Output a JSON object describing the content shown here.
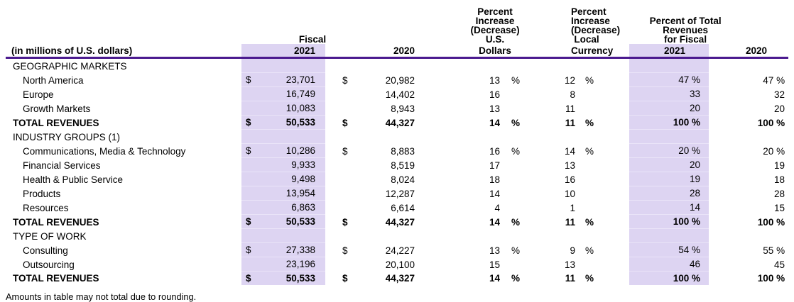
{
  "colors": {
    "highlight": "#ddd4f2",
    "rule": "#4b1a8f"
  },
  "header": {
    "row_label": "(in millions of U.S. dollars)",
    "fiscal_label": "Fiscal",
    "col_2021": "2021",
    "col_2020": "2020",
    "pct_us_lines": [
      "Percent",
      "Increase",
      "(Decrease)",
      "U.S."
    ],
    "pct_us_bottom": "Dollars",
    "pct_local_lines": [
      "Percent",
      "Increase",
      "(Decrease)",
      "Local"
    ],
    "pct_local_bottom": "Currency",
    "pct_total_lines": [
      "Percent of Total",
      "Revenues",
      "for Fiscal"
    ],
    "pct_total_2021": "2021",
    "pct_total_2020": "2020"
  },
  "table": {
    "rows": [
      {
        "type": "section",
        "label": "GEOGRAPHIC MARKETS",
        "d1": "",
        "v1": "",
        "d2": "",
        "v2": "",
        "p1": "",
        "s1": "",
        "p2": "",
        "s2": "",
        "t1": "",
        "t2": ""
      },
      {
        "type": "item",
        "label": "North America",
        "d1": "$",
        "v1": "23,701",
        "d2": "$",
        "v2": "20,982",
        "p1": "13",
        "s1": "%",
        "p2": "12",
        "s2": "%",
        "t1": "47 %",
        "t2": "47 %"
      },
      {
        "type": "item",
        "label": "Europe",
        "d1": "",
        "v1": "16,749",
        "d2": "",
        "v2": "14,402",
        "p1": "16",
        "s1": "",
        "p2": "8",
        "s2": "",
        "t1": "33",
        "t2": "32"
      },
      {
        "type": "item",
        "label": "Growth Markets",
        "d1": "",
        "v1": "10,083",
        "d2": "",
        "v2": "8,943",
        "p1": "13",
        "s1": "",
        "p2": "11",
        "s2": "",
        "t1": "20",
        "t2": "20"
      },
      {
        "type": "total",
        "label": "TOTAL REVENUES",
        "d1": "$",
        "v1": "50,533",
        "d2": "$",
        "v2": "44,327",
        "p1": "14",
        "s1": "%",
        "p2": "11",
        "s2": "%",
        "t1": "100 %",
        "t2": "100 %"
      },
      {
        "type": "section",
        "label": "INDUSTRY GROUPS (1)",
        "d1": "",
        "v1": "",
        "d2": "",
        "v2": "",
        "p1": "",
        "s1": "",
        "p2": "",
        "s2": "",
        "t1": "",
        "t2": ""
      },
      {
        "type": "item",
        "label": "Communications, Media & Technology",
        "d1": "$",
        "v1": "10,286",
        "d2": "$",
        "v2": "8,883",
        "p1": "16",
        "s1": "%",
        "p2": "14",
        "s2": "%",
        "t1": "20 %",
        "t2": "20 %"
      },
      {
        "type": "item",
        "label": "Financial Services",
        "d1": "",
        "v1": "9,933",
        "d2": "",
        "v2": "8,519",
        "p1": "17",
        "s1": "",
        "p2": "13",
        "s2": "",
        "t1": "20",
        "t2": "19"
      },
      {
        "type": "item",
        "label": "Health & Public Service",
        "d1": "",
        "v1": "9,498",
        "d2": "",
        "v2": "8,024",
        "p1": "18",
        "s1": "",
        "p2": "16",
        "s2": "",
        "t1": "19",
        "t2": "18"
      },
      {
        "type": "item",
        "label": "Products",
        "d1": "",
        "v1": "13,954",
        "d2": "",
        "v2": "12,287",
        "p1": "14",
        "s1": "",
        "p2": "10",
        "s2": "",
        "t1": "28",
        "t2": "28"
      },
      {
        "type": "item",
        "label": "Resources",
        "d1": "",
        "v1": "6,863",
        "d2": "",
        "v2": "6,614",
        "p1": "4",
        "s1": "",
        "p2": "1",
        "s2": "",
        "t1": "14",
        "t2": "15"
      },
      {
        "type": "total",
        "label": "TOTAL REVENUES",
        "d1": "$",
        "v1": "50,533",
        "d2": "$",
        "v2": "44,327",
        "p1": "14",
        "s1": "%",
        "p2": "11",
        "s2": "%",
        "t1": "100 %",
        "t2": "100 %"
      },
      {
        "type": "section",
        "label": "TYPE OF WORK",
        "d1": "",
        "v1": "",
        "d2": "",
        "v2": "",
        "p1": "",
        "s1": "",
        "p2": "",
        "s2": "",
        "t1": "",
        "t2": ""
      },
      {
        "type": "item",
        "label": "Consulting",
        "d1": "$",
        "v1": "27,338",
        "d2": "$",
        "v2": "24,227",
        "p1": "13",
        "s1": "%",
        "p2": "9",
        "s2": "%",
        "t1": "54 %",
        "t2": "55 %"
      },
      {
        "type": "item",
        "label": "Outsourcing",
        "d1": "",
        "v1": "23,196",
        "d2": "",
        "v2": "20,100",
        "p1": "15",
        "s1": "",
        "p2": "13",
        "s2": "",
        "t1": "46",
        "t2": "45"
      },
      {
        "type": "total",
        "label": "TOTAL REVENUES",
        "d1": "$",
        "v1": "50,533",
        "d2": "$",
        "v2": "44,327",
        "p1": "14",
        "s1": "%",
        "p2": "11",
        "s2": "%",
        "t1": "100 %",
        "t2": "100 %"
      }
    ]
  },
  "footnote": "Amounts in table may not total due to rounding."
}
